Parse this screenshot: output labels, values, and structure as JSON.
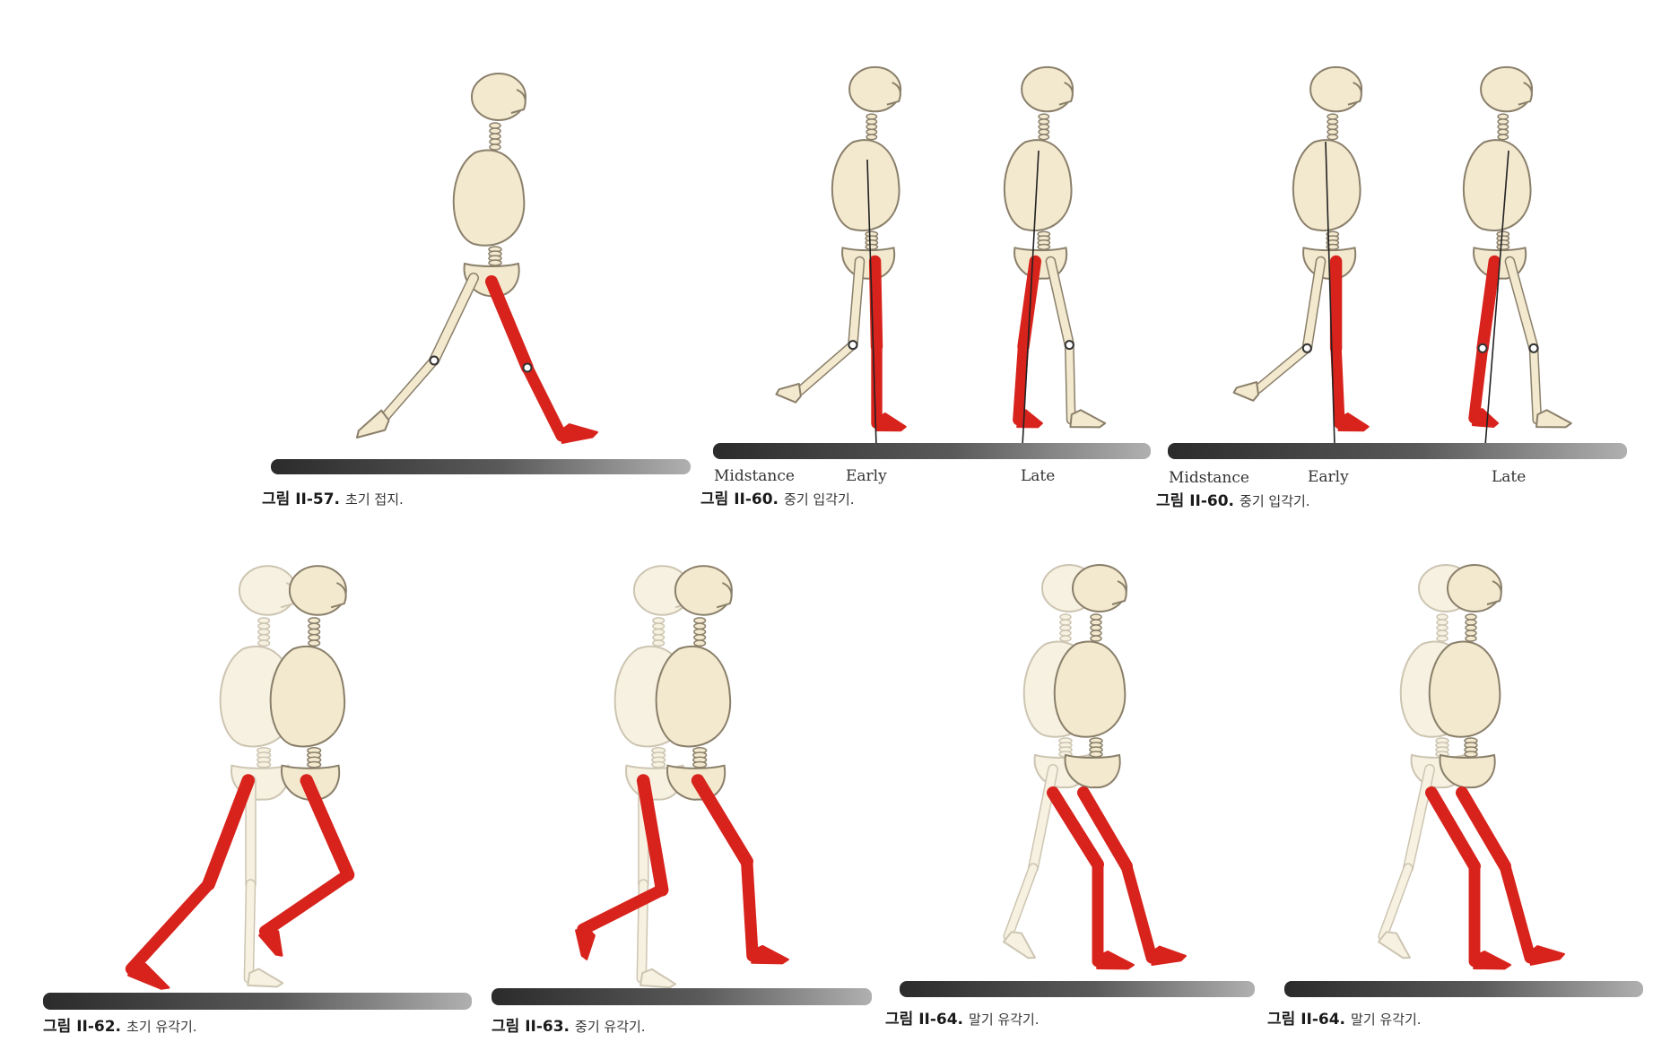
{
  "colors": {
    "bone": "#f3e9cf",
    "bone_outline": "#8a7f6a",
    "ghost_bone": "#f7f1e2",
    "ghost_outline": "#cdc5b2",
    "highlight_leg": "#d8231c",
    "ground_dark": "#2f2f2f",
    "ground_light": "#9a9a9a"
  },
  "panels": [
    {
      "id": "initial-contact",
      "caption_bold": "그림 II-57.",
      "caption_text": "초기 접지.",
      "phase_labels": []
    },
    {
      "id": "loading-response-a",
      "caption_bold": "그림 II-60.",
      "caption_text": "중기 입각기.",
      "phase_labels": [
        "Midstance",
        "Early",
        "Late"
      ]
    },
    {
      "id": "loading-response-b",
      "caption_bold": "그림 II-60.",
      "caption_text": "중기 입각기.",
      "phase_labels": [
        "Midstance",
        "Early",
        "Late"
      ]
    },
    {
      "id": "initial-swing",
      "caption_bold": "그림 II-62.",
      "caption_text": "초기 유각기.",
      "phase_labels": []
    },
    {
      "id": "mid-swing",
      "caption_bold": "그림 II-63.",
      "caption_text": "중기 유각기.",
      "phase_labels": []
    },
    {
      "id": "terminal-swing-a",
      "caption_bold": "그림 II-64.",
      "caption_text": "말기 유각기.",
      "phase_labels": []
    },
    {
      "id": "terminal-swing-b",
      "caption_bold": "그림 II-64.",
      "caption_text": "말기 유각기.",
      "phase_labels": []
    }
  ]
}
